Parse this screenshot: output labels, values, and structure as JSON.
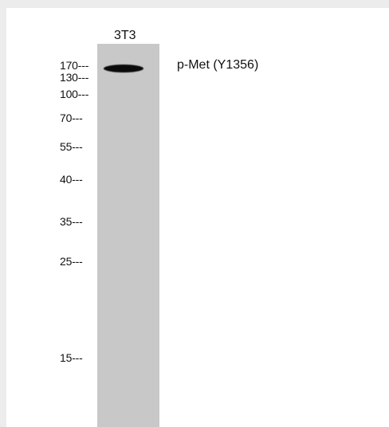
{
  "lane_label": "3T3",
  "band_label": "p-Met (Y1356)",
  "markers": [
    "170",
    "130",
    "100",
    "70",
    "55",
    "40",
    "35",
    "25",
    "15"
  ],
  "marker_suffix": "---"
}
